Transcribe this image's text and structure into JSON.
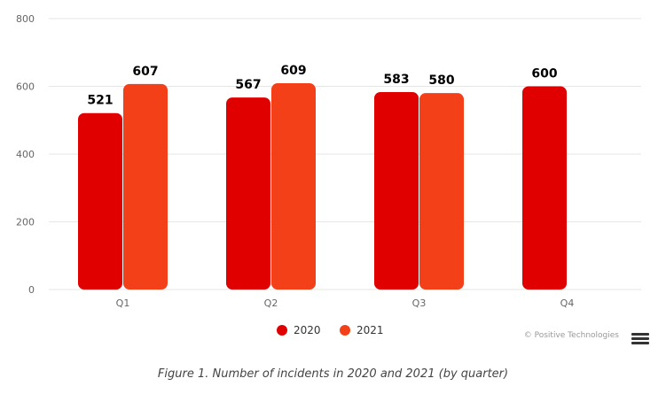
{
  "chart_data": {
    "type": "bar",
    "categories": [
      "Q1",
      "Q2",
      "Q3",
      "Q4"
    ],
    "series": [
      {
        "name": "2020",
        "values": [
          521,
          567,
          583,
          600
        ],
        "color": "#e00000"
      },
      {
        "name": "2021",
        "values": [
          607,
          609,
          580,
          null
        ],
        "color": "#f44018"
      }
    ],
    "ylim": [
      0,
      800
    ],
    "yticks": [
      0,
      200,
      400,
      600,
      800
    ],
    "grid": true,
    "legend": "bottom-center",
    "credit": "© Positive Technologies"
  },
  "caption": "Figure 1. Number of incidents in 2020 and 2021 (by quarter)",
  "menu_icon": "hamburger-menu-icon"
}
